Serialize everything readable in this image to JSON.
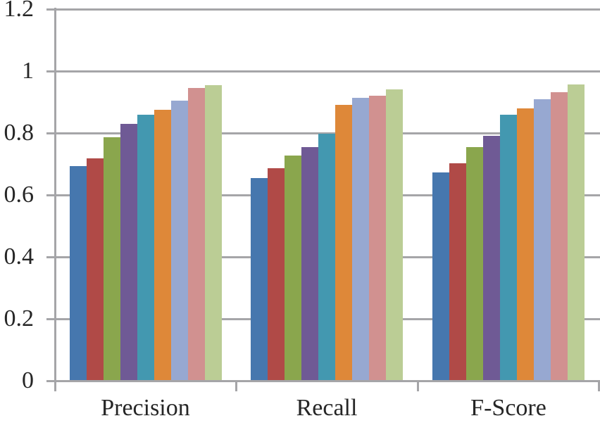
{
  "chart_data": {
    "type": "bar",
    "title": "",
    "xlabel": "",
    "ylabel": "",
    "categories": [
      "Precision",
      "Recall",
      "F-Score"
    ],
    "series": [
      {
        "name": "blue",
        "color": "#4677AE",
        "values": [
          0.694,
          0.654,
          0.673
        ]
      },
      {
        "name": "red",
        "color": "#B04A47",
        "values": [
          0.719,
          0.686,
          0.703
        ]
      },
      {
        "name": "green",
        "color": "#8AA64D",
        "values": [
          0.786,
          0.727,
          0.754
        ]
      },
      {
        "name": "purple",
        "color": "#6F5A95",
        "values": [
          0.829,
          0.754,
          0.791
        ]
      },
      {
        "name": "teal",
        "color": "#4398B0",
        "values": [
          0.858,
          0.797,
          0.86
        ]
      },
      {
        "name": "orange",
        "color": "#DE8839",
        "values": [
          0.874,
          0.89,
          0.88
        ]
      },
      {
        "name": "light-blue",
        "color": "#97A8D1",
        "values": [
          0.905,
          0.914,
          0.91
        ]
      },
      {
        "name": "pink",
        "color": "#D19190",
        "values": [
          0.945,
          0.92,
          0.931
        ]
      },
      {
        "name": "light-green",
        "color": "#BBCD95",
        "values": [
          0.954,
          0.941,
          0.956
        ]
      }
    ],
    "y_ticks": [
      {
        "label": "1.2",
        "value": 1.2
      },
      {
        "label": "1",
        "value": 1.0
      },
      {
        "label": "0.8",
        "value": 0.8
      },
      {
        "label": "0.6",
        "value": 0.6
      },
      {
        "label": "0.4",
        "value": 0.4
      },
      {
        "label": "0.2",
        "value": 0.2
      },
      {
        "label": "0",
        "value": 0.0
      }
    ],
    "ylim": [
      0,
      1.2
    ],
    "grid": "horizontal",
    "legend": "none",
    "colors": {
      "gridline": "#A5A5A8",
      "axis": "#A5A5A8",
      "text": "#262626",
      "background": "#FFFFFF"
    }
  }
}
